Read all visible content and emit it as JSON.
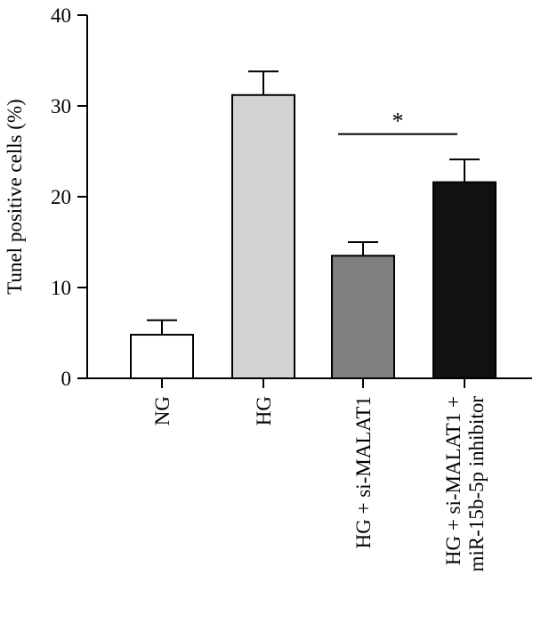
{
  "chart_data": {
    "type": "bar",
    "title": "",
    "xlabel": "",
    "ylabel": "Tunel positive cells (%)",
    "ylim": [
      0,
      40
    ],
    "yticks": [
      0,
      10,
      20,
      30,
      40
    ],
    "categories": [
      {
        "lines": [
          "NG"
        ]
      },
      {
        "lines": [
          "HG"
        ]
      },
      {
        "lines": [
          "HG + si-MALAT1"
        ]
      },
      {
        "lines": [
          "HG + si-MALAT1 +",
          "miR-15b-5p inhibitor"
        ]
      }
    ],
    "values": [
      4.8,
      31.2,
      13.5,
      21.6
    ],
    "errors": [
      1.6,
      2.6,
      1.5,
      2.5
    ],
    "colors": [
      "#ffffff",
      "#d3d3d3",
      "#7f7f7f",
      "#111111"
    ],
    "significance": {
      "from": 2,
      "to": 3,
      "y": 26.9,
      "label": "*"
    },
    "grid": false,
    "legend": "none"
  }
}
